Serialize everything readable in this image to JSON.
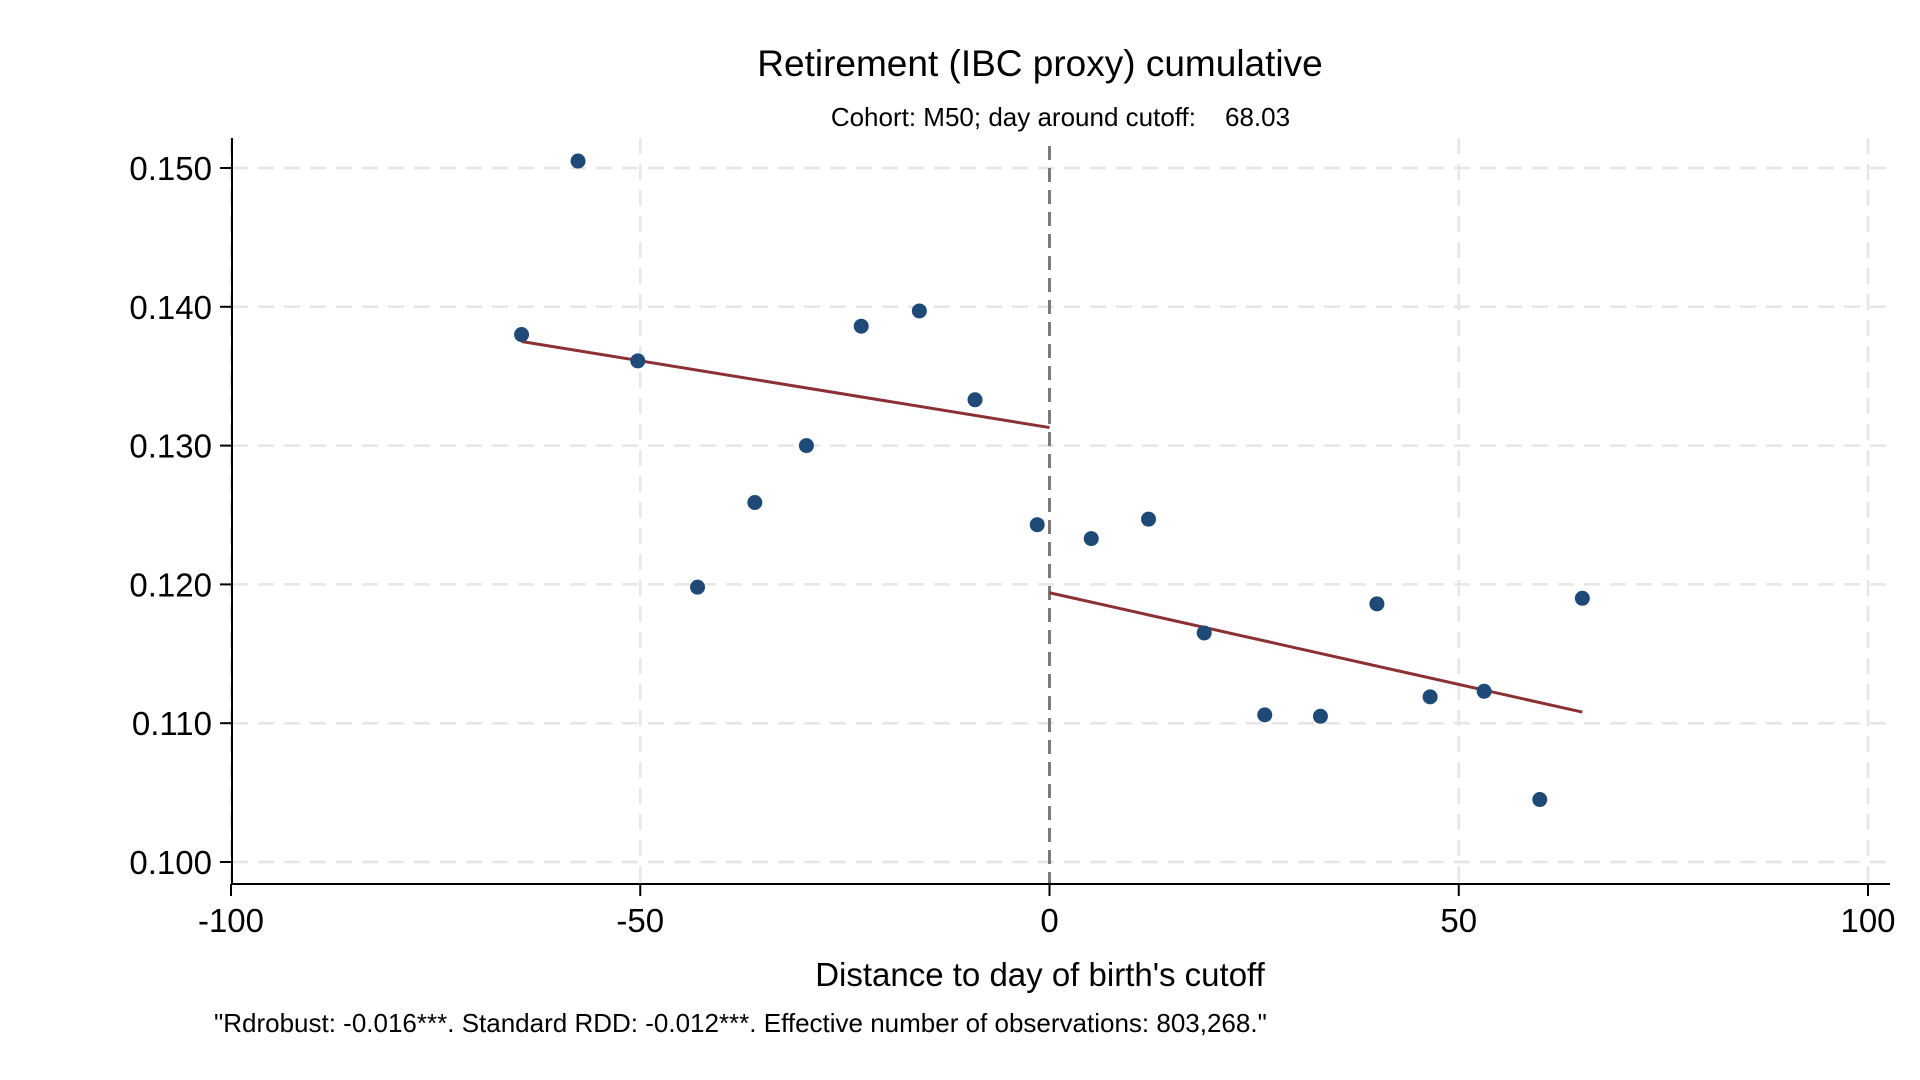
{
  "chart_data": {
    "type": "scatter",
    "title": "Retirement (IBC proxy) cumulative",
    "subtitle_label": "Cohort: M50; day around cutoff:",
    "subtitle_value": "68.03",
    "xlabel": "Distance to day of birth's cutoff",
    "ylabel": "",
    "note": "\"Rdrobust: -0.016***. Standard RDD: -0.012***. Effective number of observations: 803,268.\"",
    "xlim": [
      -100,
      100
    ],
    "ylim": [
      0.1,
      0.15
    ],
    "x_ticks": [
      -100,
      -50,
      0,
      50,
      100
    ],
    "x_tick_labels": [
      "-100",
      "-50",
      "0",
      "50",
      "100"
    ],
    "y_ticks": [
      0.1,
      0.11,
      0.12,
      0.13,
      0.14,
      0.15
    ],
    "y_tick_labels": [
      "0.100",
      "0.110",
      "0.120",
      "0.130",
      "0.140",
      "0.150"
    ],
    "grid": true,
    "cutoff_x": 0,
    "colors": {
      "points": "#1f4a78",
      "fit": "#8b3035",
      "cutoff": "#7a7a7a",
      "grid": "#e6e6e6"
    },
    "series": [
      {
        "values": [
          {
            "x": -64.5,
            "y": 0.138
          },
          {
            "x": -57.6,
            "y": 0.1505
          },
          {
            "x": -50.3,
            "y": 0.1361
          },
          {
            "x": -43.0,
            "y": 0.1198
          },
          {
            "x": -36.0,
            "y": 0.1259
          },
          {
            "x": -29.7,
            "y": 0.13
          },
          {
            "x": -23.0,
            "y": 0.1386
          },
          {
            "x": -15.9,
            "y": 0.1397
          },
          {
            "x": -9.1,
            "y": 0.1333
          },
          {
            "x": -1.5,
            "y": 0.1243
          },
          {
            "x": 5.1,
            "y": 0.1233
          },
          {
            "x": 12.1,
            "y": 0.1247
          },
          {
            "x": 18.9,
            "y": 0.1165
          },
          {
            "x": 26.3,
            "y": 0.1106
          },
          {
            "x": 33.1,
            "y": 0.1105
          },
          {
            "x": 40.0,
            "y": 0.1186
          },
          {
            "x": 46.5,
            "y": 0.1119
          },
          {
            "x": 53.1,
            "y": 0.1123
          },
          {
            "x": 59.9,
            "y": 0.1045
          },
          {
            "x": 65.1,
            "y": 0.119
          }
        ]
      }
    ],
    "fit_lines": [
      {
        "x": [
          -64.5,
          0
        ],
        "y": [
          0.1375,
          0.1313
        ]
      },
      {
        "x": [
          0,
          65.1
        ],
        "y": [
          0.1194,
          0.1108
        ]
      }
    ]
  }
}
